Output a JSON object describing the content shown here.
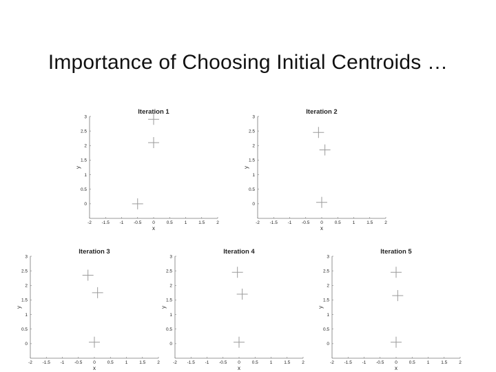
{
  "slide": {
    "title": "Importance of Choosing Initial Centroids …"
  },
  "colors": {
    "cluster_green": "#90ee90",
    "cluster_blue": "#0a2a7a",
    "cluster_red": "#8b1010",
    "centroid": "#9a9a9a"
  },
  "chart_data": [
    {
      "type": "scatter",
      "title": "Iteration 1",
      "xlabel": "x",
      "ylabel": "y",
      "xlim": [
        -2,
        2
      ],
      "ylim": [
        -0.5,
        3
      ],
      "x_ticks": [
        "-2",
        "-1.5",
        "-1",
        "-0.5",
        "0",
        "0.5",
        "1",
        "1.5",
        "2"
      ],
      "y_ticks": [
        "0",
        "0.5",
        "1",
        "1.5",
        "2",
        "2.5",
        "3"
      ],
      "series": [],
      "centroids": [
        {
          "x": -0.5,
          "y": 0
        },
        {
          "x": 0,
          "y": 2.9
        },
        {
          "x": 0,
          "y": 2.1
        }
      ]
    },
    {
      "type": "scatter",
      "title": "Iteration 2",
      "xlabel": "x",
      "ylabel": "y",
      "xlim": [
        -2,
        2
      ],
      "ylim": [
        -0.5,
        3
      ],
      "x_ticks": [
        "-2",
        "-1.5",
        "-1",
        "-0.5",
        "0",
        "0.5",
        "1",
        "1.5",
        "2"
      ],
      "y_ticks": [
        "0",
        "0.5",
        "1",
        "1.5",
        "2",
        "2.5",
        "3"
      ],
      "series": [],
      "centroids": [
        {
          "x": 0,
          "y": 0.05
        },
        {
          "x": -0.1,
          "y": 2.45
        },
        {
          "x": 0.1,
          "y": 1.85
        }
      ]
    },
    {
      "type": "scatter",
      "title": "Iteration 3",
      "xlabel": "x",
      "ylabel": "y",
      "xlim": [
        -2,
        2
      ],
      "ylim": [
        -0.5,
        3
      ],
      "x_ticks": [
        "-2",
        "-1.5",
        "-1",
        "-0.5",
        "0",
        "0.5",
        "1",
        "1.5",
        "2"
      ],
      "y_ticks": [
        "0",
        "0.5",
        "1",
        "1.5",
        "2",
        "2.5",
        "3"
      ],
      "series": [],
      "centroids": [
        {
          "x": 0,
          "y": 0.05
        },
        {
          "x": -0.2,
          "y": 2.35
        },
        {
          "x": 0.1,
          "y": 1.75
        }
      ]
    },
    {
      "type": "scatter",
      "title": "Iteration 4",
      "xlabel": "x",
      "ylabel": "y",
      "xlim": [
        -2,
        2
      ],
      "ylim": [
        -0.5,
        3
      ],
      "x_ticks": [
        "-2",
        "-1.5",
        "-1",
        "-0.5",
        "0",
        "0.5",
        "1",
        "1.5",
        "2"
      ],
      "y_ticks": [
        "0",
        "0.5",
        "1",
        "1.5",
        "2",
        "2.5",
        "3"
      ],
      "series": [],
      "centroids": [
        {
          "x": 0,
          "y": 0.05
        },
        {
          "x": -0.05,
          "y": 2.45
        },
        {
          "x": 0.1,
          "y": 1.7
        }
      ]
    },
    {
      "type": "scatter",
      "title": "Iteration 5",
      "xlabel": "x",
      "ylabel": "y",
      "xlim": [
        -2,
        2
      ],
      "ylim": [
        -0.5,
        3
      ],
      "x_ticks": [
        "-2",
        "-1.5",
        "-1",
        "-0.5",
        "0",
        "0.5",
        "1",
        "1.5",
        "2"
      ],
      "y_ticks": [
        "0",
        "0.5",
        "1",
        "1.5",
        "2",
        "2.5",
        "3"
      ],
      "series": [],
      "centroids": [
        {
          "x": 0,
          "y": 0.05
        },
        {
          "x": 0,
          "y": 2.45
        },
        {
          "x": 0.05,
          "y": 1.65
        }
      ]
    }
  ]
}
